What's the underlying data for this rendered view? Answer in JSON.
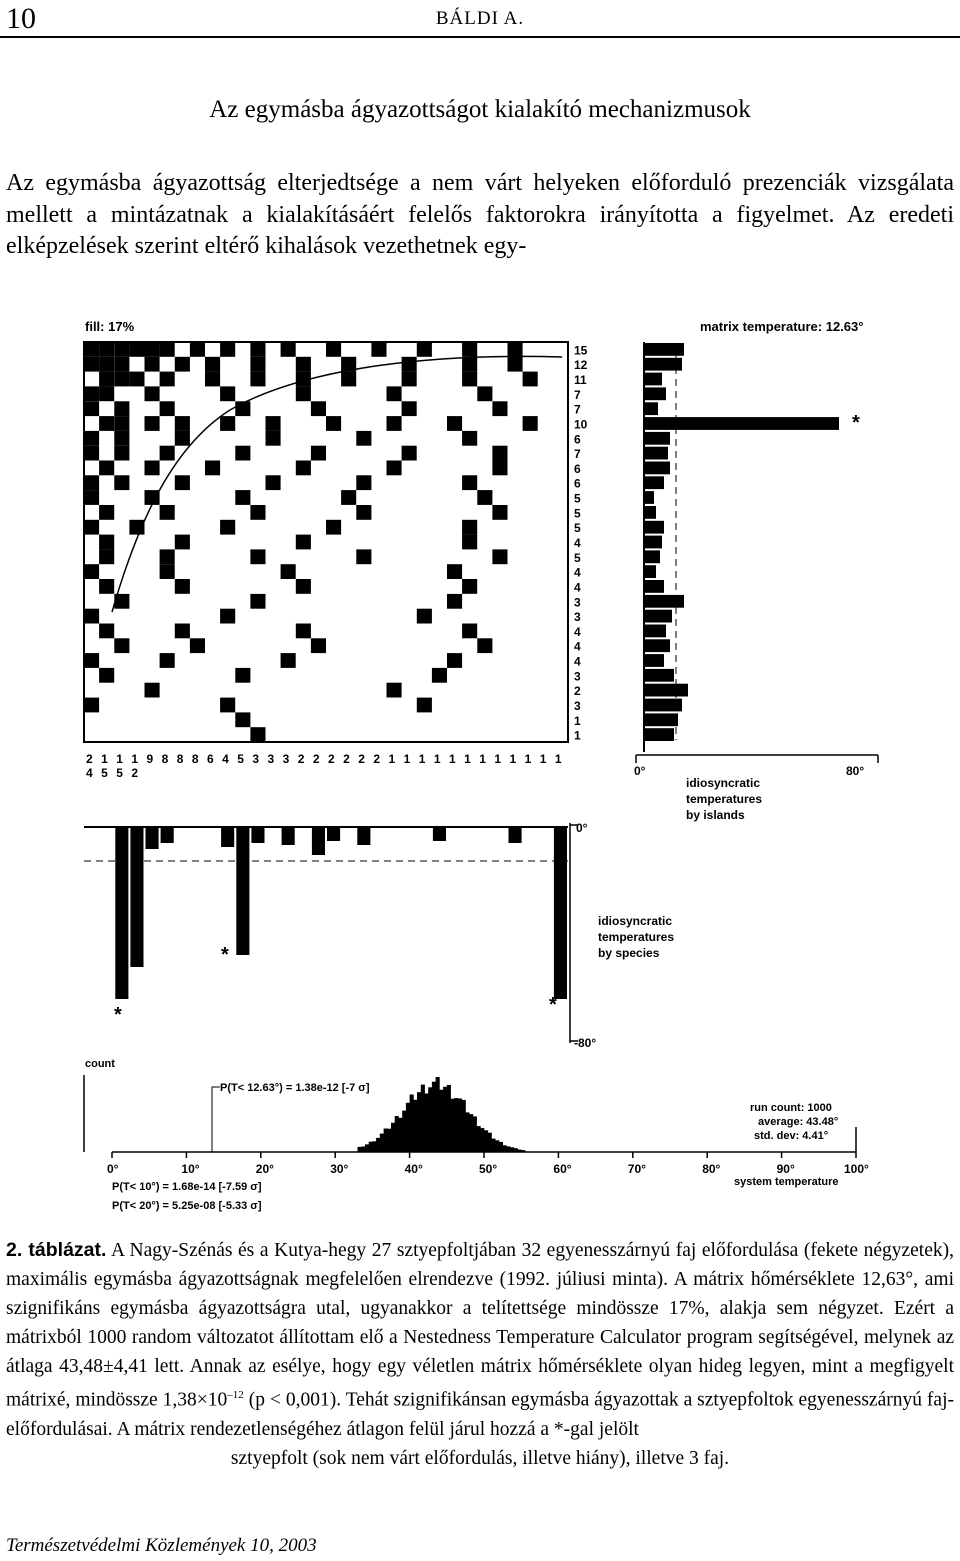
{
  "header": {
    "page_number": "10",
    "running_head": "BÁLDI A."
  },
  "section_title": "Az egymásba ágyazottságot kialakító mechanizmusok",
  "paragraph": "Az egymásba ágyazottság elterjedtsége a nem várt helyeken előforduló prezenciák vizsgálata mellett a mintázatnak a kialakításáért felelős faktorokra irányította a figyelmet. Az eredeti elképzelések szerint eltérő kihalások vezethetnek egy-",
  "figure": {
    "fill_label": "fill: 17%",
    "matrix_temperature_label": "matrix temperature: 12.63°",
    "island_counts": [
      "15",
      "12",
      "11",
      "7",
      "7",
      "10",
      "6",
      "7",
      "6",
      "6",
      "5",
      "5",
      "5",
      "4",
      "5",
      "4",
      "4",
      "3",
      "3",
      "4",
      "4",
      "4",
      "3",
      "2",
      "3",
      "1",
      "1"
    ],
    "species_counts_top": [
      "2",
      "1",
      "1",
      "1",
      "9",
      "8",
      "8",
      "8",
      "6",
      "4",
      "5",
      "3",
      "3",
      "3",
      "2",
      "2",
      "2",
      "2",
      "2",
      "2",
      "1",
      "1",
      "1",
      "1",
      "1",
      "1",
      "1",
      "1",
      "1",
      "1",
      "1",
      "1"
    ],
    "species_counts_bottom": [
      "4",
      "5",
      "5",
      "2"
    ],
    "island_axis": {
      "min": "0°",
      "max": "80°",
      "caption_lines": [
        "idiosyncratic",
        "temperatures",
        "by islands"
      ]
    },
    "species_axis": {
      "min": "0°",
      "max": "-80°",
      "caption_lines": [
        "idiosyncratic",
        "temperatures",
        "by species"
      ]
    },
    "outlier_marker": "*",
    "histogram": {
      "y_label": "count",
      "x_ticks": [
        "0°",
        "10°",
        "20°",
        "30°",
        "40°",
        "50°",
        "60°",
        "70°",
        "80°",
        "90°",
        "100°"
      ],
      "x_label": "system temperature",
      "p_observed": "P(T< 12.63°) = 1.38e-12  [-7 σ]",
      "p_10": "P(T< 10°) = 1.68e-14  [-7.59 σ]",
      "p_20": "P(T< 20°) = 5.25e-08  [-5.33 σ]",
      "stats": [
        "run count: 1000",
        "average: 43.48°",
        "std. dev: 4.41°"
      ],
      "average": 43.48,
      "std_dev": 4.41
    }
  },
  "caption": {
    "label": "2. táblázat.",
    "text": "A Nagy-Szénás és a Kutya-hegy 27 sztyepfoltjában 32 egyenesszárnyú faj előfordulása (fekete négyzetek), maximális egymásba ágyazottságnak megfelelően elrendezve (1992. júliusi minta). A mátrix hőmérséklete 12,63°, ami szignifikáns egymásba ágyazottságra utal, ugyanakkor a telítettsége mindössze 17%, alakja sem négyzet. Ezért a mátrixból 1000 random változatot állítottam elő a Nestedness Temperature Calculator program segítségével, melynek az átlaga 43,48±4,41 lett. Annak az esélye, hogy egy véletlen mátrix hőmérséklete olyan hideg legyen, mint a megfigyelt mátrixé, mindössze 1,38×10",
    "exponent": "–12",
    "text2": " (p < 0,001). Tehát szignifikánsan egymásba ágyazottak a sztyepfoltok egyenesszárnyú faj-előfordulásai. A mátrix rendezetlenségéhez átlagon felül járul hozzá a *-gal jelölt",
    "last_line": "sztyepfolt (sok nem várt előfordulás, illetve hiány), illetve 3 faj."
  },
  "footer": "Természetvédelmi Közlemények 10, 2003"
}
